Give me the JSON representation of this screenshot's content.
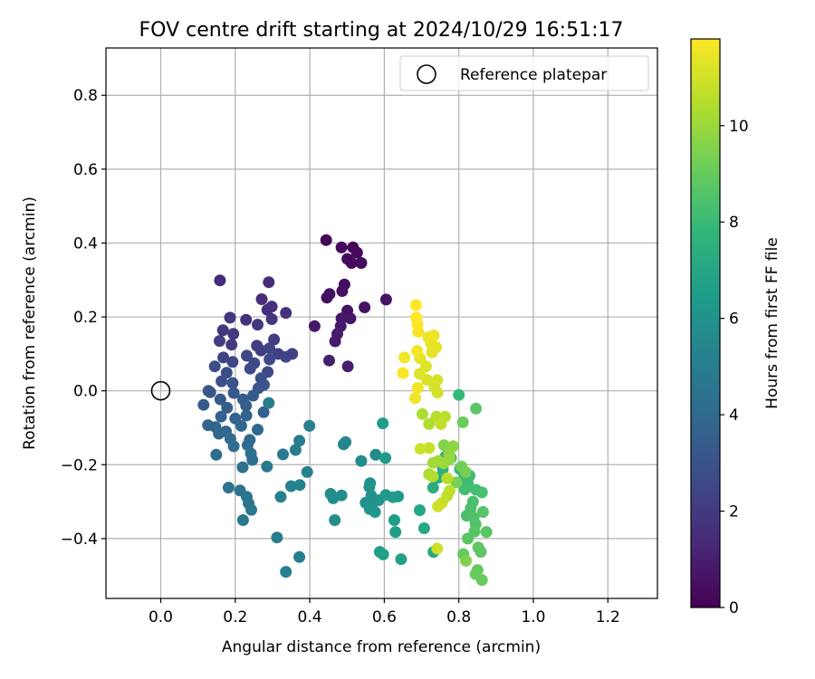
{
  "chart_data": {
    "type": "scatter",
    "title": "FOV centre drift starting at 2024/10/29 16:51:17",
    "xlabel": "Angular distance from reference (arcmin)",
    "ylabel": "Rotation from reference (arcmin)",
    "xlim": [
      -0.147,
      1.333
    ],
    "ylim": [
      -0.562,
      0.928
    ],
    "xticks": [
      0.0,
      0.2,
      0.4,
      0.6,
      0.8,
      1.0,
      1.2
    ],
    "xtick_labels": [
      "0.0",
      "0.2",
      "0.4",
      "0.6",
      "0.8",
      "1.0",
      "1.2"
    ],
    "yticks": [
      -0.4,
      -0.2,
      0.0,
      0.2,
      0.4,
      0.6,
      0.8
    ],
    "ytick_labels": [
      "−0.4",
      "−0.2",
      "0.0",
      "0.2",
      "0.4",
      "0.6",
      "0.8"
    ],
    "grid": true,
    "legend": {
      "position": "top-right",
      "entries": [
        "Reference platepar"
      ]
    },
    "reference_point": {
      "x": 0.0,
      "y": 0.0
    },
    "colorbar": {
      "label": "Hours from first FF file",
      "colormap": "viridis",
      "range": [
        0,
        11.8
      ],
      "ticks": [
        0,
        2,
        4,
        6,
        8,
        10
      ],
      "tick_labels": [
        "0",
        "2",
        "4",
        "6",
        "8",
        "10"
      ],
      "stops": [
        "#440154",
        "#482878",
        "#3e4a89",
        "#31688e",
        "#26828e",
        "#1f9e89",
        "#35b779",
        "#6ece58",
        "#b5de2b",
        "#fde725"
      ]
    },
    "points": [
      [
        0.444,
        0.408,
        0.1
      ],
      [
        0.485,
        0.388,
        0.2
      ],
      [
        0.516,
        0.388,
        0.2
      ],
      [
        0.527,
        0.374,
        0.3
      ],
      [
        0.501,
        0.357,
        0.3
      ],
      [
        0.512,
        0.346,
        0.3
      ],
      [
        0.538,
        0.346,
        0.4
      ],
      [
        0.493,
        0.288,
        0.4
      ],
      [
        0.446,
        0.252,
        0.5
      ],
      [
        0.453,
        0.262,
        0.5
      ],
      [
        0.487,
        0.27,
        0.5
      ],
      [
        0.605,
        0.247,
        0.6
      ],
      [
        0.547,
        0.226,
        0.6
      ],
      [
        0.501,
        0.217,
        0.6
      ],
      [
        0.485,
        0.196,
        0.7
      ],
      [
        0.509,
        0.196,
        0.7
      ],
      [
        0.413,
        0.175,
        0.8
      ],
      [
        0.483,
        0.175,
        0.8
      ],
      [
        0.474,
        0.154,
        0.9
      ],
      [
        0.468,
        0.134,
        0.9
      ],
      [
        0.452,
        0.082,
        1.0
      ],
      [
        0.502,
        0.066,
        1.0
      ],
      [
        0.159,
        0.299,
        1.4
      ],
      [
        0.29,
        0.294,
        1.5
      ],
      [
        0.271,
        0.248,
        1.5
      ],
      [
        0.298,
        0.228,
        1.6
      ],
      [
        0.286,
        0.219,
        1.6
      ],
      [
        0.336,
        0.211,
        1.7
      ],
      [
        0.229,
        0.192,
        1.7
      ],
      [
        0.298,
        0.194,
        1.8
      ],
      [
        0.186,
        0.198,
        1.8
      ],
      [
        0.26,
        0.179,
        1.9
      ],
      [
        0.167,
        0.164,
        1.9
      ],
      [
        0.195,
        0.154,
        2.0
      ],
      [
        0.19,
        0.125,
        2.0
      ],
      [
        0.158,
        0.135,
        2.1
      ],
      [
        0.258,
        0.122,
        2.1
      ],
      [
        0.304,
        0.139,
        2.1
      ],
      [
        0.269,
        0.109,
        2.2
      ],
      [
        0.315,
        0.1,
        2.2
      ],
      [
        0.292,
        0.115,
        2.3
      ],
      [
        0.353,
        0.1,
        2.3
      ],
      [
        0.336,
        0.092,
        2.4
      ],
      [
        0.168,
        0.09,
        2.4
      ],
      [
        0.231,
        0.095,
        2.5
      ],
      [
        0.193,
        0.078,
        2.5
      ],
      [
        0.292,
        0.085,
        2.6
      ],
      [
        0.251,
        0.075,
        2.6
      ],
      [
        0.24,
        0.06,
        2.7
      ],
      [
        0.287,
        0.051,
        2.7
      ],
      [
        0.145,
        0.066,
        2.8
      ],
      [
        0.177,
        0.049,
        2.8
      ],
      [
        0.269,
        0.034,
        2.9
      ],
      [
        0.163,
        0.026,
        2.9
      ],
      [
        0.277,
        0.016,
        3.0
      ],
      [
        0.193,
        0.021,
        3.0
      ],
      [
        0.262,
        0.007,
        3.1
      ],
      [
        0.128,
        0.0,
        3.1
      ],
      [
        0.133,
        -0.004,
        3.2
      ],
      [
        0.196,
        -0.006,
        3.2
      ],
      [
        0.16,
        -0.023,
        3.3
      ],
      [
        0.115,
        -0.038,
        3.3
      ],
      [
        0.221,
        -0.023,
        3.4
      ],
      [
        0.248,
        -0.013,
        3.4
      ],
      [
        0.229,
        -0.04,
        3.5
      ],
      [
        0.178,
        -0.046,
        3.5
      ],
      [
        0.276,
        -0.058,
        3.6
      ],
      [
        0.162,
        -0.07,
        3.6
      ],
      [
        0.2,
        -0.075,
        3.7
      ],
      [
        0.23,
        -0.067,
        3.7
      ],
      [
        0.127,
        -0.093,
        3.8
      ],
      [
        0.147,
        -0.098,
        3.8
      ],
      [
        0.175,
        -0.11,
        3.9
      ],
      [
        0.216,
        -0.095,
        3.9
      ],
      [
        0.156,
        -0.116,
        4.0
      ],
      [
        0.26,
        -0.105,
        4.0
      ],
      [
        0.187,
        -0.13,
        4.1
      ],
      [
        0.239,
        -0.133,
        4.1
      ],
      [
        0.196,
        -0.15,
        4.2
      ],
      [
        0.233,
        -0.147,
        4.2
      ],
      [
        0.242,
        -0.17,
        4.3
      ],
      [
        0.149,
        -0.173,
        4.3
      ],
      [
        0.246,
        -0.187,
        4.4
      ],
      [
        0.22,
        -0.207,
        4.4
      ],
      [
        0.182,
        -0.262,
        4.5
      ],
      [
        0.213,
        -0.27,
        4.5
      ],
      [
        0.231,
        -0.287,
        4.6
      ],
      [
        0.236,
        -0.305,
        4.6
      ],
      [
        0.243,
        -0.322,
        4.7
      ],
      [
        0.221,
        -0.35,
        4.7
      ],
      [
        0.285,
        -0.205,
        4.8
      ],
      [
        0.328,
        -0.172,
        4.8
      ],
      [
        0.372,
        -0.135,
        4.9
      ],
      [
        0.362,
        -0.16,
        4.9
      ],
      [
        0.399,
        -0.095,
        5.0
      ],
      [
        0.312,
        -0.397,
        5.0
      ],
      [
        0.336,
        -0.49,
        5.1
      ],
      [
        0.372,
        -0.45,
        5.1
      ],
      [
        0.322,
        -0.287,
        5.2
      ],
      [
        0.35,
        -0.258,
        5.2
      ],
      [
        0.373,
        -0.255,
        5.3
      ],
      [
        0.393,
        -0.22,
        5.3
      ],
      [
        0.29,
        -0.033,
        4.9
      ],
      [
        0.496,
        -0.139,
        5.5
      ],
      [
        0.491,
        -0.145,
        5.5
      ],
      [
        0.538,
        -0.19,
        5.6
      ],
      [
        0.577,
        -0.173,
        5.6
      ],
      [
        0.456,
        -0.279,
        5.7
      ],
      [
        0.463,
        -0.291,
        5.7
      ],
      [
        0.485,
        -0.283,
        5.8
      ],
      [
        0.467,
        -0.35,
        5.8
      ],
      [
        0.55,
        -0.303,
        5.9
      ],
      [
        0.562,
        -0.25,
        5.9
      ],
      [
        0.56,
        -0.26,
        6.0
      ],
      [
        0.565,
        -0.284,
        6.0
      ],
      [
        0.568,
        -0.305,
        6.1
      ],
      [
        0.585,
        -0.296,
        6.1
      ],
      [
        0.561,
        -0.32,
        6.2
      ],
      [
        0.575,
        -0.328,
        6.2
      ],
      [
        0.604,
        -0.282,
        6.3
      ],
      [
        0.623,
        -0.288,
        6.3
      ],
      [
        0.637,
        -0.286,
        6.4
      ],
      [
        0.603,
        -0.182,
        6.4
      ],
      [
        0.596,
        -0.088,
        6.5
      ],
      [
        0.627,
        -0.35,
        6.5
      ],
      [
        0.63,
        -0.382,
        6.6
      ],
      [
        0.588,
        -0.436,
        6.6
      ],
      [
        0.597,
        -0.443,
        6.7
      ],
      [
        0.645,
        -0.456,
        6.7
      ],
      [
        0.695,
        -0.323,
        7.0
      ],
      [
        0.707,
        -0.372,
        7.1
      ],
      [
        0.732,
        -0.436,
        7.2
      ],
      [
        0.731,
        -0.262,
        7.3
      ],
      [
        0.745,
        -0.235,
        7.4
      ],
      [
        0.757,
        -0.212,
        7.5
      ],
      [
        0.764,
        -0.178,
        7.6
      ],
      [
        0.779,
        -0.182,
        7.7
      ],
      [
        0.8,
        -0.011,
        7.8
      ],
      [
        0.803,
        -0.212,
        7.9
      ],
      [
        0.81,
        -0.218,
        8.0
      ],
      [
        0.815,
        -0.237,
        8.0
      ],
      [
        0.824,
        -0.25,
        8.1
      ],
      [
        0.829,
        -0.23,
        8.1
      ],
      [
        0.816,
        -0.267,
        8.2
      ],
      [
        0.846,
        -0.268,
        8.2
      ],
      [
        0.862,
        -0.275,
        8.3
      ],
      [
        0.838,
        -0.3,
        8.3
      ],
      [
        0.832,
        -0.318,
        8.4
      ],
      [
        0.821,
        -0.338,
        8.4
      ],
      [
        0.84,
        -0.343,
        8.5
      ],
      [
        0.845,
        -0.361,
        8.5
      ],
      [
        0.865,
        -0.328,
        8.6
      ],
      [
        0.842,
        -0.381,
        8.6
      ],
      [
        0.874,
        -0.382,
        8.7
      ],
      [
        0.824,
        -0.4,
        8.7
      ],
      [
        0.852,
        -0.424,
        8.8
      ],
      [
        0.859,
        -0.436,
        8.8
      ],
      [
        0.812,
        -0.442,
        8.9
      ],
      [
        0.85,
        -0.485,
        8.9
      ],
      [
        0.845,
        -0.496,
        9.0
      ],
      [
        0.862,
        -0.512,
        9.0
      ],
      [
        0.846,
        -0.048,
        8.7
      ],
      [
        0.811,
        -0.085,
        9.1
      ],
      [
        0.807,
        -0.205,
        9.2
      ],
      [
        0.818,
        -0.22,
        9.3
      ],
      [
        0.793,
        -0.248,
        9.4
      ],
      [
        0.819,
        -0.46,
        9.5
      ],
      [
        0.76,
        -0.147,
        9.6
      ],
      [
        0.785,
        -0.15,
        9.7
      ],
      [
        0.774,
        -0.172,
        9.8
      ],
      [
        0.775,
        -0.184,
        9.9
      ],
      [
        0.76,
        -0.196,
        10.0
      ],
      [
        0.745,
        -0.19,
        10.1
      ],
      [
        0.731,
        -0.195,
        10.2
      ],
      [
        0.72,
        -0.226,
        10.3
      ],
      [
        0.73,
        -0.232,
        10.4
      ],
      [
        0.769,
        -0.237,
        10.5
      ],
      [
        0.775,
        -0.271,
        10.6
      ],
      [
        0.769,
        -0.284,
        10.7
      ],
      [
        0.755,
        -0.303,
        10.8
      ],
      [
        0.744,
        -0.313,
        10.9
      ],
      [
        0.702,
        -0.063,
        10.3
      ],
      [
        0.72,
        -0.09,
        10.4
      ],
      [
        0.74,
        -0.07,
        10.5
      ],
      [
        0.763,
        -0.07,
        10.6
      ],
      [
        0.752,
        -0.09,
        10.7
      ],
      [
        0.72,
        -0.155,
        10.8
      ],
      [
        0.697,
        -0.157,
        10.9
      ],
      [
        0.743,
        -0.005,
        11.0
      ],
      [
        0.735,
        0.01,
        11.0
      ],
      [
        0.714,
        0.03,
        11.1
      ],
      [
        0.742,
        0.029,
        11.1
      ],
      [
        0.695,
        0.046,
        11.2
      ],
      [
        0.712,
        0.066,
        11.2
      ],
      [
        0.696,
        0.088,
        11.3
      ],
      [
        0.728,
        0.104,
        11.3
      ],
      [
        0.739,
        0.118,
        11.4
      ],
      [
        0.725,
        0.128,
        11.4
      ],
      [
        0.718,
        0.145,
        11.5
      ],
      [
        0.733,
        0.15,
        11.5
      ],
      [
        0.688,
        0.108,
        11.6
      ],
      [
        0.654,
        0.09,
        11.6
      ],
      [
        0.65,
        0.048,
        11.7
      ],
      [
        0.691,
        0.16,
        11.7
      ],
      [
        0.689,
        0.18,
        11.7
      ],
      [
        0.686,
        0.198,
        11.8
      ],
      [
        0.685,
        0.232,
        11.8
      ],
      [
        0.69,
        0.008,
        11.6
      ],
      [
        0.683,
        -0.02,
        11.5
      ],
      [
        0.742,
        -0.427,
        10.9
      ]
    ]
  }
}
